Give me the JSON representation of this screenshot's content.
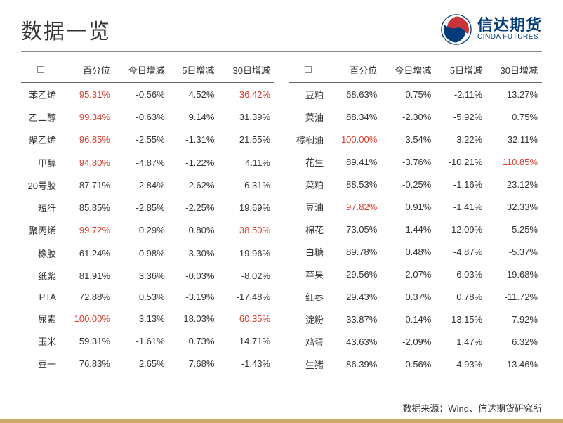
{
  "title": "数据一览",
  "logo": {
    "cn": "信达期货",
    "en": "CINDA FUTURES"
  },
  "colors": {
    "title_color": "#333333",
    "logo_color": "#003b7a",
    "divider_color": "#888888",
    "border_color": "#666666",
    "text_color": "#333333",
    "highlight_red": "#d93a2b",
    "accent_bar": "#c9a96a",
    "background": "#ffffff",
    "logo_swirl_blue": "#003b7a",
    "logo_swirl_red": "#c9333a"
  },
  "typography": {
    "title_fontsize": 30,
    "table_fontsize": 13,
    "logo_cn_fontsize": 22,
    "logo_en_fontsize": 10,
    "footer_fontsize": 13
  },
  "headers": [
    "",
    "百分位",
    "今日增减",
    "5日增减",
    "30日增减"
  ],
  "highlight_threshold_percentile": 90,
  "highlight_threshold_30d": 35,
  "table_left": {
    "rows": [
      {
        "name": "苯乙烯",
        "pct": "95.31%",
        "d1": "-0.56%",
        "d5": "4.52%",
        "d30": "36.42%",
        "hl_pct": true,
        "hl_30": true
      },
      {
        "name": "乙二醇",
        "pct": "99.34%",
        "d1": "-0.63%",
        "d5": "9.14%",
        "d30": "31.39%",
        "hl_pct": true,
        "hl_30": false
      },
      {
        "name": "聚乙烯",
        "pct": "96.85%",
        "d1": "-2.55%",
        "d5": "-1.31%",
        "d30": "21.55%",
        "hl_pct": true,
        "hl_30": false
      },
      {
        "name": "甲醇",
        "pct": "94.80%",
        "d1": "-4.87%",
        "d5": "-1.22%",
        "d30": "4.11%",
        "hl_pct": true,
        "hl_30": false
      },
      {
        "name": "20号胶",
        "pct": "87.71%",
        "d1": "-2.84%",
        "d5": "-2.62%",
        "d30": "6.31%",
        "hl_pct": false,
        "hl_30": false
      },
      {
        "name": "短纤",
        "pct": "85.85%",
        "d1": "-2.85%",
        "d5": "-2.25%",
        "d30": "19.69%",
        "hl_pct": false,
        "hl_30": false
      },
      {
        "name": "聚丙烯",
        "pct": "99.72%",
        "d1": "0.29%",
        "d5": "0.80%",
        "d30": "38.50%",
        "hl_pct": true,
        "hl_30": true
      },
      {
        "name": "橡胶",
        "pct": "61.24%",
        "d1": "-0.98%",
        "d5": "-3.30%",
        "d30": "-19.96%",
        "hl_pct": false,
        "hl_30": false
      },
      {
        "name": "纸浆",
        "pct": "81.91%",
        "d1": "3.36%",
        "d5": "-0.03%",
        "d30": "-8.02%",
        "hl_pct": false,
        "hl_30": false
      },
      {
        "name": "PTA",
        "pct": "72.88%",
        "d1": "0.53%",
        "d5": "-3.19%",
        "d30": "-17.48%",
        "hl_pct": false,
        "hl_30": false
      },
      {
        "name": "尿素",
        "pct": "100.00%",
        "d1": "3.13%",
        "d5": "18.03%",
        "d30": "60.35%",
        "hl_pct": true,
        "hl_30": true
      },
      {
        "name": "玉米",
        "pct": "59.31%",
        "d1": "-1.61%",
        "d5": "0.73%",
        "d30": "14.71%",
        "hl_pct": false,
        "hl_30": false
      },
      {
        "name": "豆一",
        "pct": "76.83%",
        "d1": "2.65%",
        "d5": "7.68%",
        "d30": "-1.43%",
        "hl_pct": false,
        "hl_30": false
      }
    ]
  },
  "table_right": {
    "rows": [
      {
        "name": "豆粕",
        "pct": "68.63%",
        "d1": "0.75%",
        "d5": "-2.11%",
        "d30": "13.27%",
        "hl_pct": false,
        "hl_30": false
      },
      {
        "name": "菜油",
        "pct": "88.34%",
        "d1": "-2.30%",
        "d5": "-5.92%",
        "d30": "0.75%",
        "hl_pct": false,
        "hl_30": false
      },
      {
        "name": "棕榈油",
        "pct": "100.00%",
        "d1": "3.54%",
        "d5": "3.22%",
        "d30": "32.11%",
        "hl_pct": true,
        "hl_30": false
      },
      {
        "name": "花生",
        "pct": "89.41%",
        "d1": "-3.76%",
        "d5": "-10.21%",
        "d30": "110.85%",
        "hl_pct": false,
        "hl_30": true
      },
      {
        "name": "菜粕",
        "pct": "88.53%",
        "d1": "-0.25%",
        "d5": "-1.16%",
        "d30": "23.12%",
        "hl_pct": false,
        "hl_30": false
      },
      {
        "name": "豆油",
        "pct": "97.82%",
        "d1": "0.91%",
        "d5": "-1.41%",
        "d30": "32.33%",
        "hl_pct": true,
        "hl_30": false
      },
      {
        "name": "棉花",
        "pct": "73.05%",
        "d1": "-1.44%",
        "d5": "-12.09%",
        "d30": "-5.25%",
        "hl_pct": false,
        "hl_30": false
      },
      {
        "name": "白糖",
        "pct": "89.78%",
        "d1": "0.48%",
        "d5": "-4.87%",
        "d30": "-5.37%",
        "hl_pct": false,
        "hl_30": false
      },
      {
        "name": "苹果",
        "pct": "29.56%",
        "d1": "-2.07%",
        "d5": "-6.03%",
        "d30": "-19.68%",
        "hl_pct": false,
        "hl_30": false
      },
      {
        "name": "红枣",
        "pct": "29.43%",
        "d1": "0.37%",
        "d5": "0.78%",
        "d30": "-11.72%",
        "hl_pct": false,
        "hl_30": false
      },
      {
        "name": "淀粉",
        "pct": "33.87%",
        "d1": "-0.14%",
        "d5": "-13.15%",
        "d30": "-7.92%",
        "hl_pct": false,
        "hl_30": false
      },
      {
        "name": "鸡蛋",
        "pct": "43.63%",
        "d1": "-2.09%",
        "d5": "1.47%",
        "d30": "6.32%",
        "hl_pct": false,
        "hl_30": false
      },
      {
        "name": "生猪",
        "pct": "86.39%",
        "d1": "0.56%",
        "d5": "-4.93%",
        "d30": "13.46%",
        "hl_pct": false,
        "hl_30": false
      }
    ]
  },
  "footer": "数据来源：Wind、信达期货研究所"
}
